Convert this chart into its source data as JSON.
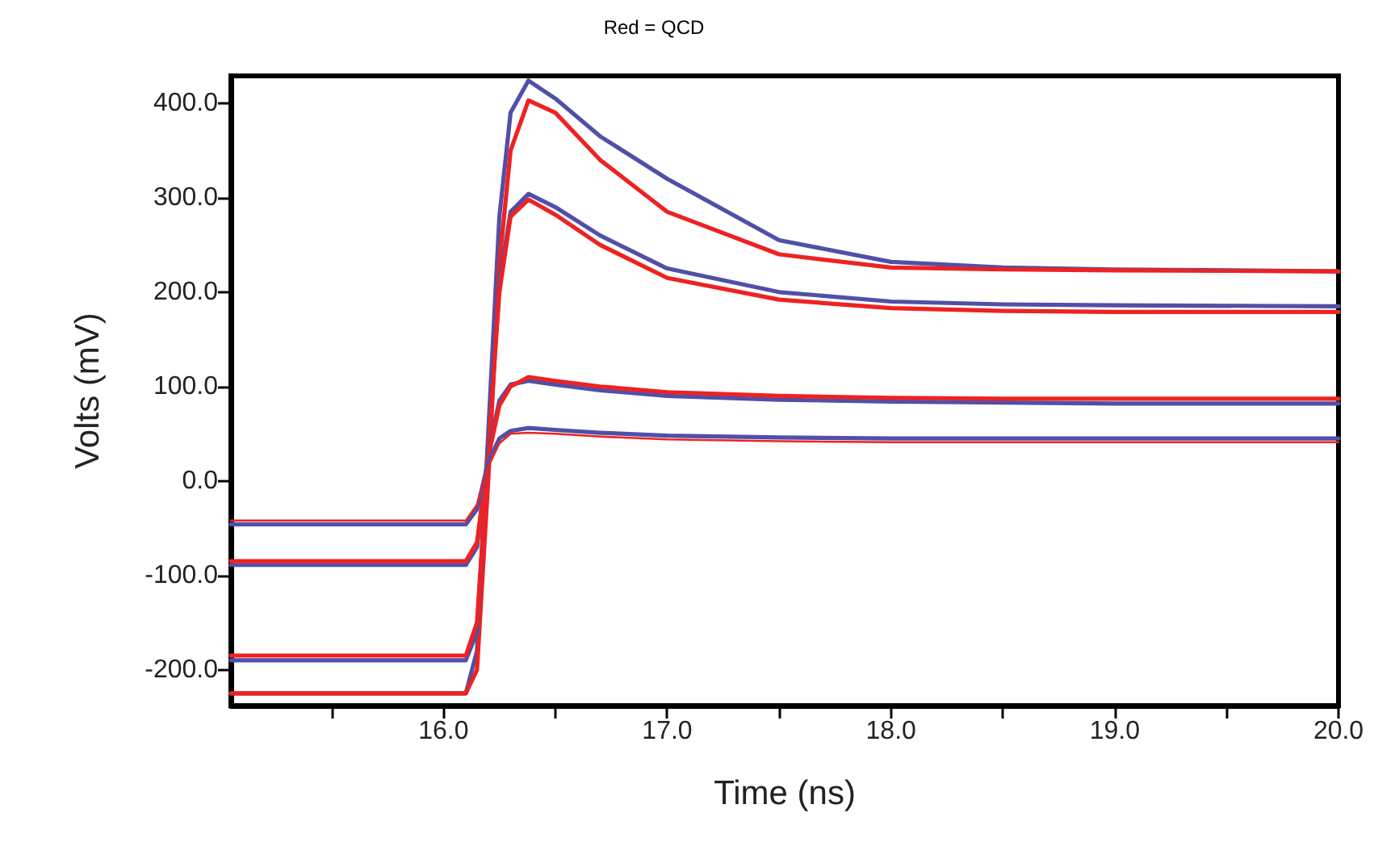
{
  "chart_data": {
    "type": "line",
    "title": "Red = QCD",
    "xlabel": "Time (ns)",
    "ylabel": "Volts (mV)",
    "xlim": [
      15.05,
      20.0
    ],
    "xticks": [
      {
        "value": 15.5,
        "label": null
      },
      {
        "value": 16,
        "label": "16.0"
      },
      {
        "value": 16.5,
        "label": null
      },
      {
        "value": 17,
        "label": "17.0"
      },
      {
        "value": 17.5,
        "label": null
      },
      {
        "value": 18,
        "label": "18.0"
      },
      {
        "value": 18.5,
        "label": null
      },
      {
        "value": 19,
        "label": "19.0"
      },
      {
        "value": 19.5,
        "label": null
      },
      {
        "value": 20,
        "label": "20.0"
      }
    ],
    "ylim": [
      -238,
      429
    ],
    "yticks": [
      {
        "value": -200,
        "label": "-200.0"
      },
      {
        "value": -100,
        "label": "-100.0"
      },
      {
        "value": 0,
        "label": "0.0"
      },
      {
        "value": 100,
        "label": "100.0"
      },
      {
        "value": 200,
        "label": "200.0"
      },
      {
        "value": 300,
        "label": "300.0"
      },
      {
        "value": 400,
        "label": "400.0"
      }
    ],
    "x": [
      15.05,
      16.1,
      16.15,
      16.2,
      16.25,
      16.3,
      16.38,
      16.5,
      16.7,
      17.0,
      17.5,
      18.0,
      18.5,
      19.0,
      20.0
    ],
    "grid": false,
    "marker": "none",
    "line_style": "solid",
    "series": [
      {
        "color": "#5050a8",
        "values": [
          -225,
          -225,
          -180,
          50,
          280,
          390,
          424,
          405,
          365,
          320,
          255,
          232,
          226,
          224,
          222
        ]
      },
      {
        "color": "#ee2222",
        "values": [
          -225,
          -225,
          -200,
          0,
          230,
          350,
          403,
          390,
          340,
          285,
          240,
          226,
          224,
          223,
          222
        ]
      },
      {
        "color": "#5050a8",
        "values": [
          -190,
          -190,
          -160,
          40,
          210,
          285,
          304,
          290,
          260,
          225,
          200,
          190,
          187,
          186,
          185
        ]
      },
      {
        "color": "#ee2222",
        "values": [
          -185,
          -185,
          -150,
          30,
          200,
          280,
          298,
          282,
          250,
          215,
          192,
          183,
          180,
          179,
          179
        ]
      },
      {
        "color": "#5050a8",
        "values": [
          -89,
          -89,
          -70,
          30,
          85,
          102,
          106,
          102,
          96,
          90,
          86,
          84,
          83,
          82,
          82
        ]
      },
      {
        "color": "#ee2222",
        "values": [
          -85,
          -85,
          -65,
          25,
          80,
          100,
          110,
          106,
          100,
          94,
          90,
          88,
          87,
          87,
          87
        ]
      },
      {
        "color": "#5050a8",
        "values": [
          -46,
          -46,
          -30,
          20,
          45,
          53,
          56,
          54,
          51,
          48,
          46,
          45,
          45,
          45,
          45
        ]
      },
      {
        "color": "#ee2222",
        "values": [
          -42,
          -42,
          -25,
          15,
          40,
          50,
          51,
          50,
          47,
          44,
          42,
          41,
          41,
          41,
          41
        ]
      }
    ]
  }
}
